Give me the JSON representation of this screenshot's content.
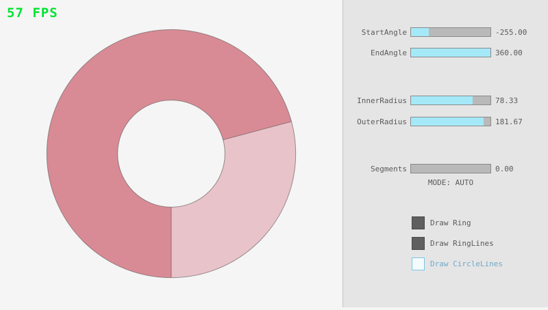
{
  "fps_label": "57 FPS",
  "ring": {
    "fill_dark": "#D98B95",
    "fill_light": "#E8C3C9",
    "outline": "#4a4a4a",
    "background": "#F5F5F5"
  },
  "panel": {
    "sliders": [
      {
        "label": "StartAngle",
        "value": "-255.00",
        "fill_percent": 22
      },
      {
        "label": "EndAngle",
        "value": "360.00",
        "fill_percent": 100
      },
      {
        "label": "InnerRadius",
        "value": "78.33",
        "fill_percent": 78
      },
      {
        "label": "OuterRadius",
        "value": "181.67",
        "fill_percent": 91
      },
      {
        "label": "Segments",
        "value": "0.00",
        "fill_percent": 0
      }
    ],
    "mode_text": "MODE: AUTO",
    "checkboxes": [
      {
        "label": "Draw Ring",
        "checked": true
      },
      {
        "label": "Draw RingLines",
        "checked": true
      },
      {
        "label": "Draw CircleLines",
        "checked": false
      }
    ]
  }
}
